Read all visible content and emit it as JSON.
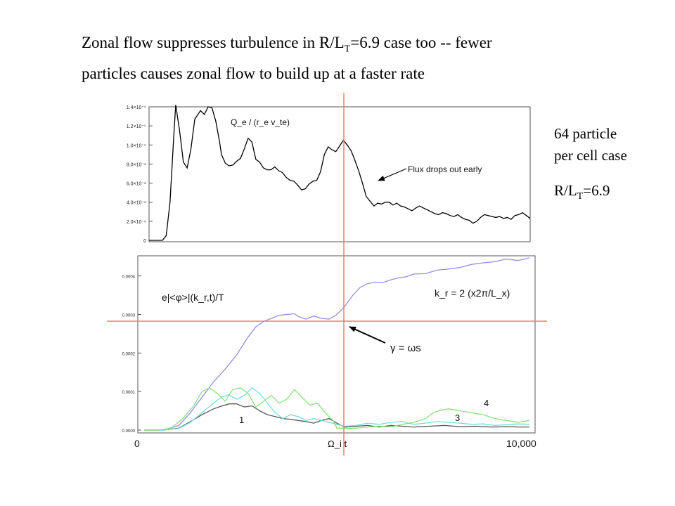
{
  "slide": {
    "title_line1_prefix": "Zonal flow suppresses turbulence in R/L",
    "title_line1_sub": "T",
    "title_line1_suffix": "=6.9 case too -- fewer",
    "title_line2": "particles causes zonal flow to build up at a faster rate",
    "case_line1": "64 particle",
    "case_line2": "per cell case",
    "rlt_prefix": "R/L",
    "rlt_sub": "T",
    "rlt_suffix": "=6.9"
  },
  "colors": {
    "crosshair": "#ff7f50",
    "flux": "#000000",
    "kr2": "#8f8fe0",
    "kr1": "#555555",
    "kr3": "#6ee0e0",
    "kr4": "#86e27a"
  },
  "chart_data": [
    {
      "type": "line",
      "panel": "top",
      "title": "",
      "ylabel_text": "Q_e / (r_e v_te)",
      "xlim": [
        0,
        10000
      ],
      "ylim": [
        0,
        1.4e-05
      ],
      "ytick_labels": [
        "0",
        "2.0×10⁻⁶",
        "4.0×10⁻⁶",
        "6.0×10⁻⁶",
        "8.0×10⁻⁶",
        "1.0×10⁻⁵",
        "1.2×10⁻⁵",
        "1.4×10⁻⁵"
      ],
      "ytick_values": [
        0,
        2e-06,
        4e-06,
        6e-06,
        8e-06,
        1e-05,
        1.2e-05,
        1.4e-05
      ],
      "annotation": "Flux drops out early",
      "annotation_at": [
        5350,
        6.8e-06
      ],
      "series": [
        {
          "x": [
            0,
            350,
            450,
            550,
            650,
            700,
            800,
            900,
            1000,
            1100,
            1200,
            1350,
            1450,
            1550,
            1650,
            1750,
            1850,
            1900,
            2000,
            2100,
            2200,
            2300,
            2400,
            2500,
            2600,
            2700,
            2800,
            2900,
            3000,
            3100,
            3200,
            3300,
            3400,
            3500,
            3600,
            3700,
            3800,
            3900,
            4000,
            4100,
            4200,
            4300,
            4400,
            4500,
            4600,
            4700,
            4800,
            4900,
            5000,
            5100,
            5200,
            5300,
            5400,
            5500,
            5600,
            5700,
            5800,
            5900,
            6000,
            6100,
            6200,
            6300,
            6400,
            6500,
            6600,
            6700,
            6800,
            6900,
            7000,
            7100,
            7200,
            7300,
            7400,
            7500,
            7600,
            7700,
            7800,
            7900,
            8000,
            8100,
            8200,
            8300,
            8400,
            8500,
            8600,
            8700,
            8800,
            8900,
            9000,
            9100,
            9200,
            9300,
            9400,
            9500,
            9600,
            9700,
            9800,
            9900,
            10000
          ],
          "y": [
            0,
            0,
            5e-07,
            4e-06,
            1.1e-05,
            1.42e-05,
            1.15e-05,
            8.2e-06,
            7.6e-06,
            9.6e-06,
            1.27e-05,
            1.36e-05,
            1.32e-05,
            1.4e-05,
            1.39e-05,
            1.25e-05,
            1.03e-05,
            9e-06,
            8.1e-06,
            7.8e-06,
            7.9e-06,
            8.3e-06,
            8.6e-06,
            9.6e-06,
            1.07e-05,
            1.03e-05,
            8.5e-06,
            8.2e-06,
            7.6e-06,
            7.4e-06,
            7.4e-06,
            7.7e-06,
            7.3e-06,
            7.1e-06,
            6.6e-06,
            6.3e-06,
            6.2e-06,
            5.8e-06,
            5.3e-06,
            5.4e-06,
            5.9e-06,
            6.2e-06,
            6.3e-06,
            7.2e-06,
            9e-06,
            9.8e-06,
            9.5e-06,
            9.3e-06,
            9.9e-06,
            1.05e-05,
            1e-05,
            9.4e-06,
            8.4e-06,
            7.3e-06,
            6e-06,
            4.6e-06,
            4.1e-06,
            3.6e-06,
            3.9e-06,
            3.8e-06,
            4e-06,
            4e-06,
            3.7e-06,
            3.9e-06,
            3.6e-06,
            3.5e-06,
            3.3e-06,
            3.1e-06,
            3.4e-06,
            3.6e-06,
            3.4e-06,
            3.2e-06,
            3e-06,
            2.8e-06,
            2.7e-06,
            2.9e-06,
            2.8e-06,
            2.6e-06,
            2.5e-06,
            2.7e-06,
            2.4e-06,
            2.2e-06,
            2.1e-06,
            1.8e-06,
            2e-06,
            2.4e-06,
            2.7e-06,
            2.6e-06,
            2.5e-06,
            2.4e-06,
            2.5e-06,
            2.3e-06,
            2.4e-06,
            2.2e-06,
            2.6e-06,
            2.7e-06,
            2.9e-06,
            2.6e-06,
            2.3e-06
          ]
        }
      ]
    },
    {
      "type": "line",
      "panel": "bottom",
      "title": "",
      "ylabel_text": "e|<φ>|(k_r,t)/T",
      "xlabel_text": "Ω_i t",
      "x_tick_labels": [
        "0",
        "10,000"
      ],
      "xlim": [
        0,
        10000
      ],
      "ylim": [
        0,
        0.000445
      ],
      "ytick_labels": [
        "0.0000",
        "0.0001",
        "0.0002",
        "0.0003",
        "0.0004"
      ],
      "ytick_values": [
        0,
        0.0001,
        0.0002,
        0.0003,
        0.0004
      ],
      "annotations": [
        "k_r = 2 (x2π/L_x)",
        "γ = ωs",
        "1",
        "3",
        "4"
      ],
      "series": [
        {
          "name": "kr2",
          "x": [
            0,
            500,
            900,
            1200,
            1500,
            1800,
            2100,
            2400,
            2700,
            2900,
            3100,
            3300,
            3500,
            3700,
            3900,
            4000,
            4200,
            4400,
            4600,
            4800,
            5000,
            5200,
            5400,
            5600,
            5800,
            6000,
            6200,
            6400,
            6600,
            6800,
            7000,
            7300,
            7600,
            7900,
            8200,
            8500,
            8800,
            9100,
            9400,
            9700,
            10000
          ],
          "y": [
            0,
            0,
            1.2e-05,
            4.5e-05,
            8.5e-05,
            0.000125,
            0.000158,
            0.000195,
            0.000242,
            0.000268,
            0.000282,
            0.00029,
            0.000298,
            0.0003,
            0.000302,
            0.000295,
            0.000288,
            0.000296,
            0.00029,
            0.000288,
            0.0003,
            0.00032,
            0.000348,
            0.00037,
            0.00038,
            0.000384,
            0.000383,
            0.00039,
            0.000395,
            0.000398,
            0.000405,
            0.000406,
            0.000415,
            0.000418,
            0.000422,
            0.00043,
            0.000434,
            0.000437,
            0.000444,
            0.00044,
            0.000447
          ]
        },
        {
          "name": "kr1",
          "x": [
            0,
            500,
            900,
            1200,
            1500,
            1800,
            2000,
            2200,
            2400,
            2600,
            2800,
            3000,
            3200,
            3400,
            3600,
            3800,
            4000,
            4200,
            4400,
            4600,
            4800,
            5000,
            5200,
            5500,
            5800,
            6100,
            6400,
            6700,
            7000,
            7400,
            7800,
            8200,
            8600,
            9000,
            9400,
            9700,
            10000
          ],
          "y": [
            0,
            0,
            5e-06,
            2.2e-05,
            4e-05,
            5.5e-05,
            6.2e-05,
            6.8e-05,
            6.8e-05,
            6e-05,
            6.3e-05,
            5e-05,
            4e-05,
            3.5e-05,
            3e-05,
            2.8e-05,
            2.5e-05,
            2.2e-05,
            1.8e-05,
            2.5e-05,
            3e-05,
            1.8e-05,
            8e-06,
            1e-05,
            1.2e-05,
            8e-06,
            1.2e-05,
            1e-05,
            8e-06,
            1e-05,
            1.2e-05,
            9e-06,
            1e-05,
            8e-06,
            9e-06,
            8e-06,
            8e-06
          ]
        },
        {
          "name": "kr3",
          "x": [
            0,
            500,
            900,
            1200,
            1500,
            1800,
            2000,
            2200,
            2400,
            2600,
            2800,
            3000,
            3200,
            3400,
            3600,
            3800,
            4000,
            4200,
            4400,
            4600,
            4800,
            5000,
            5200,
            5500,
            5800,
            6100,
            6400,
            6700,
            7000,
            7300,
            7600,
            7900,
            8200,
            8500,
            8800,
            9100,
            9400,
            9700,
            10000
          ],
          "y": [
            0,
            0,
            4e-06,
            2e-05,
            4.5e-05,
            7e-05,
            8.5e-05,
            9.2e-05,
            8e-05,
            9e-05,
            0.00011,
            9.5e-05,
            7e-05,
            4.5e-05,
            3e-05,
            4e-05,
            3.5e-05,
            2.5e-05,
            3e-05,
            2.5e-05,
            2e-05,
            1.5e-05,
            1e-05,
            1.2e-05,
            1.8e-05,
            1.5e-05,
            2e-05,
            2.2e-05,
            1.5e-05,
            1.8e-05,
            2.2e-05,
            2e-05,
            1.8e-05,
            1.5e-05,
            1.6e-05,
            1.2e-05,
            1.4e-05,
            1.6e-05,
            1.5e-05
          ]
        },
        {
          "name": "kr4",
          "x": [
            0,
            400,
            700,
            1000,
            1300,
            1500,
            1700,
            1900,
            2100,
            2300,
            2500,
            2700,
            2900,
            3100,
            3300,
            3500,
            3700,
            3900,
            4100,
            4300,
            4500,
            4700,
            4900,
            5000,
            5200,
            5500,
            5800,
            6100,
            6400,
            6700,
            7000,
            7300,
            7500,
            7700,
            7900,
            8200,
            8500,
            8800,
            9100,
            9400,
            9700,
            10000
          ],
          "y": [
            0,
            0,
            5e-06,
            3e-05,
            6.5e-05,
            0.0001,
            0.00011,
            9.5e-05,
            7.5e-05,
            0.000105,
            0.00011,
            9.5e-05,
            6e-05,
            7.5e-05,
            9e-05,
            7e-05,
            8e-05,
            0.000105,
            8.5e-05,
            6.5e-05,
            7e-05,
            4.5e-05,
            2.5e-05,
            5e-06,
            5e-06,
            5e-06,
            8e-06,
            1e-05,
            8e-06,
            1.5e-05,
            2e-05,
            3e-05,
            4.5e-05,
            5.2e-05,
            5.5e-05,
            5e-05,
            4.5e-05,
            4e-05,
            3e-05,
            2.5e-05,
            2e-05,
            2.5e-05
          ]
        }
      ]
    }
  ]
}
